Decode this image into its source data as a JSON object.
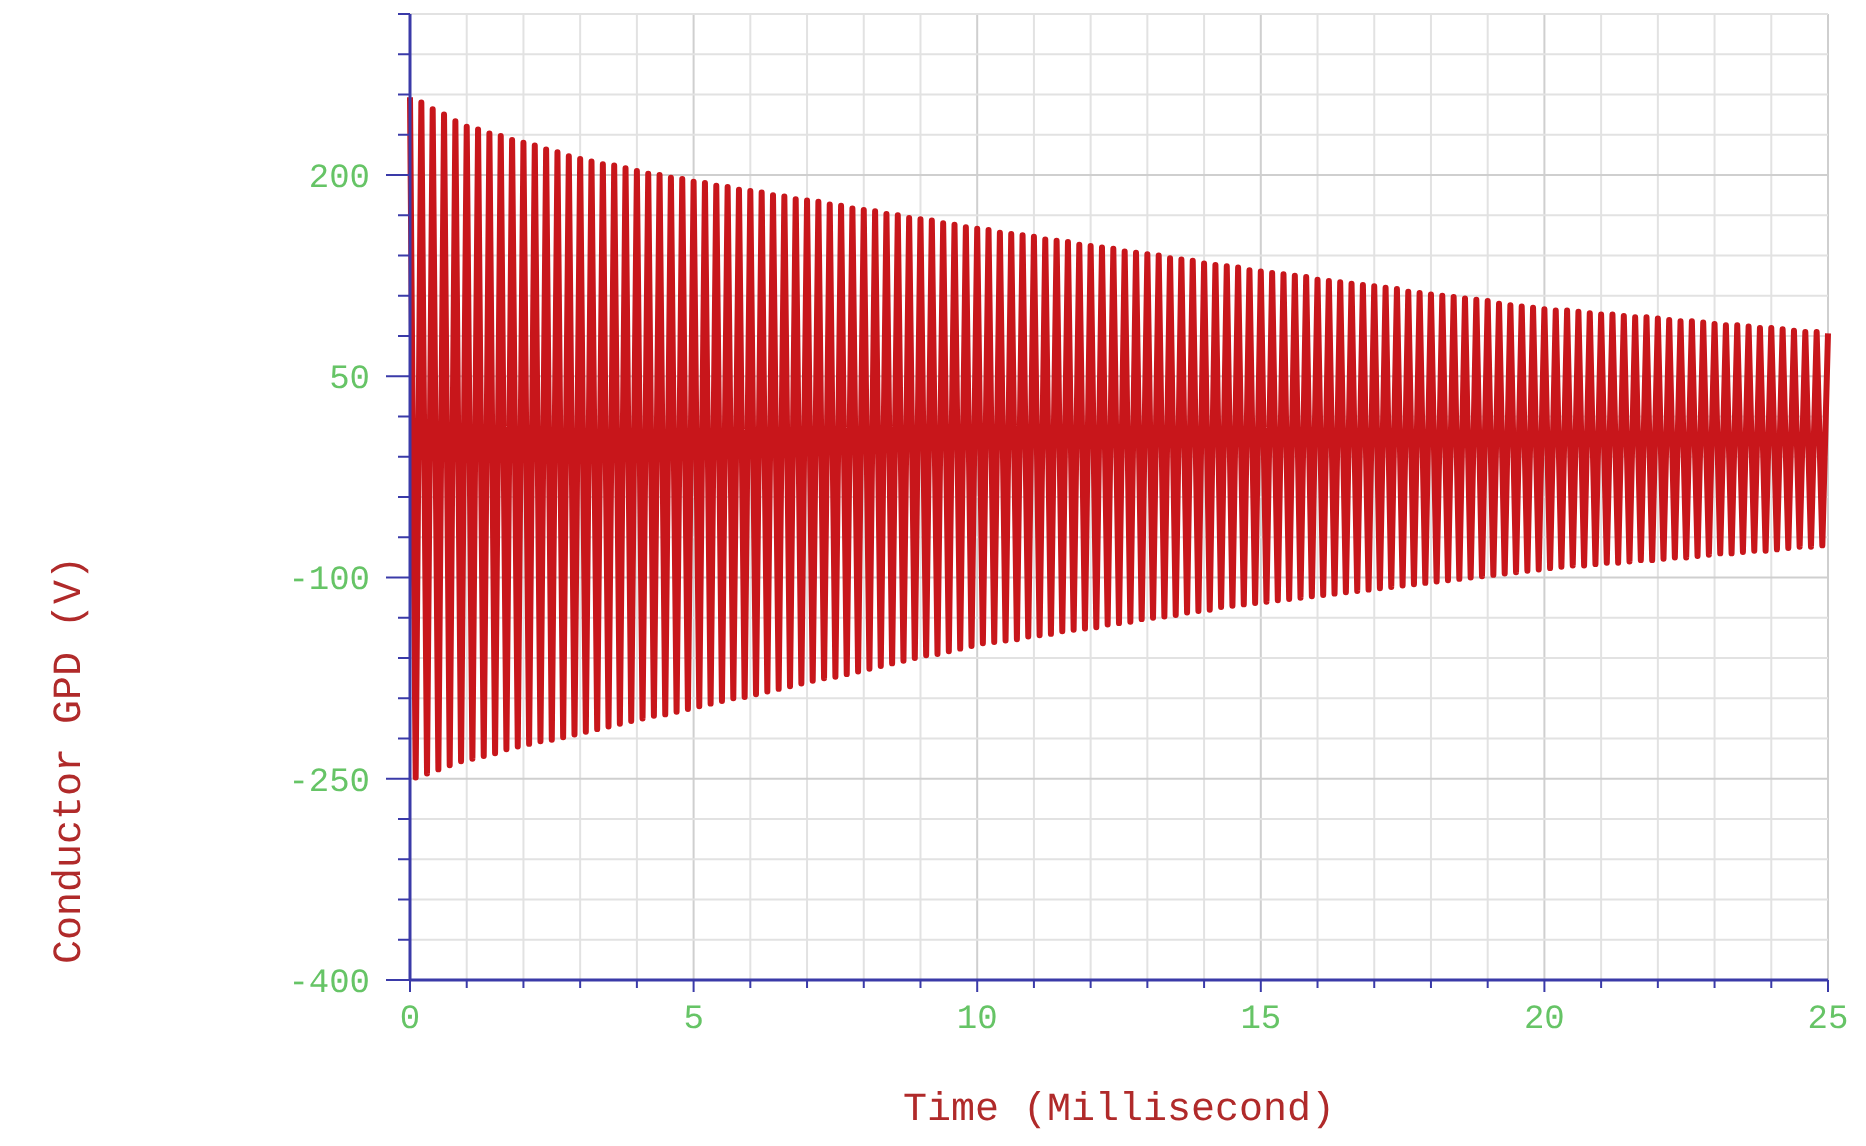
{
  "chart_data": {
    "type": "line",
    "xlabel": "Time (Millisecond)",
    "ylabel": "Conductor GPD (V)",
    "xlim": [
      0,
      25
    ],
    "ylim": [
      -400,
      320
    ],
    "xticks": [
      0,
      {
        "value": 1,
        "label": null
      },
      {
        "value": 2,
        "label": null
      },
      {
        "value": 3,
        "label": null
      },
      {
        "value": 4,
        "label": null
      },
      5,
      {
        "value": 6,
        "label": null
      },
      {
        "value": 7,
        "label": null
      },
      {
        "value": 8,
        "label": null
      },
      {
        "value": 9,
        "label": null
      },
      10,
      {
        "value": 11,
        "label": null
      },
      {
        "value": 12,
        "label": null
      },
      {
        "value": 13,
        "label": null
      },
      {
        "value": 14,
        "label": null
      },
      15,
      {
        "value": 16,
        "label": null
      },
      {
        "value": 17,
        "label": null
      },
      {
        "value": 18,
        "label": null
      },
      {
        "value": 19,
        "label": null
      },
      20,
      {
        "value": 21,
        "label": null
      },
      {
        "value": 22,
        "label": null
      },
      {
        "value": 23,
        "label": null
      },
      {
        "value": 24,
        "label": null
      },
      25
    ],
    "yticks": [
      -400,
      {
        "value": -370,
        "label": null
      },
      {
        "value": -340,
        "label": null
      },
      {
        "value": -310,
        "label": null
      },
      {
        "value": -280,
        "label": null
      },
      -250,
      {
        "value": -220,
        "label": null
      },
      {
        "value": -190,
        "label": null
      },
      {
        "value": -160,
        "label": null
      },
      {
        "value": -130,
        "label": null
      },
      -100,
      {
        "value": -70,
        "label": null
      },
      {
        "value": -40,
        "label": null
      },
      {
        "value": -10,
        "label": null
      },
      {
        "value": 20,
        "label": null
      },
      50,
      {
        "value": 80,
        "label": null
      },
      {
        "value": 110,
        "label": null
      },
      {
        "value": 140,
        "label": null
      },
      {
        "value": 170,
        "label": null
      },
      200,
      {
        "value": 230,
        "label": null
      },
      {
        "value": 260,
        "label": null
      },
      {
        "value": 290,
        "label": null
      },
      {
        "value": 320,
        "label": null
      }
    ],
    "grid": true,
    "marker": "none",
    "line_style": "solid",
    "x": [
      0,
      0.1,
      0.2,
      0.3,
      0.4,
      0.5,
      0.6,
      0.7,
      0.8,
      0.9,
      1,
      1.1,
      1.2,
      1.3,
      1.4,
      1.5,
      1.6,
      1.7,
      1.8,
      1.9,
      2,
      2.1,
      2.2,
      2.3,
      2.4,
      2.5,
      2.6,
      2.7,
      2.8,
      2.9,
      3,
      3.1,
      3.2,
      3.3,
      3.4,
      3.5,
      3.6,
      3.7,
      3.8,
      3.9,
      4,
      4.1,
      4.2,
      4.3,
      4.4,
      4.5,
      4.6,
      4.7,
      4.8,
      4.9,
      5,
      5.1,
      5.2,
      5.3,
      5.4,
      5.5,
      5.6,
      5.7,
      5.8,
      5.9,
      6,
      6.1,
      6.2,
      6.3,
      6.4,
      6.5,
      6.6,
      6.7,
      6.8,
      6.9,
      7,
      7.1,
      7.2,
      7.3,
      7.4,
      7.5,
      7.6,
      7.7,
      7.8,
      7.9,
      8,
      8.1,
      8.2,
      8.3,
      8.4,
      8.5,
      8.6,
      8.7,
      8.8,
      8.9,
      9,
      9.1,
      9.2,
      9.3,
      9.4,
      9.5,
      9.6,
      9.7,
      9.8,
      9.9,
      10,
      10.1,
      10.2,
      10.3,
      10.4,
      10.5,
      10.6,
      10.7,
      10.8,
      10.9,
      11,
      11.1,
      11.2,
      11.3,
      11.4,
      11.5,
      11.6,
      11.7,
      11.8,
      11.9,
      12,
      12.1,
      12.2,
      12.3,
      12.4,
      12.5,
      12.6,
      12.7,
      12.8,
      12.9,
      13,
      13.1,
      13.2,
      13.3,
      13.4,
      13.5,
      13.6,
      13.7,
      13.8,
      13.9,
      14,
      14.1,
      14.2,
      14.3,
      14.4,
      14.5,
      14.6,
      14.7,
      14.8,
      14.9,
      15,
      15.1,
      15.2,
      15.3,
      15.4,
      15.5,
      15.6,
      15.7,
      15.8,
      15.9,
      16,
      16.1,
      16.2,
      16.3,
      16.4,
      16.5,
      16.6,
      16.7,
      16.8,
      16.9,
      17,
      17.1,
      17.2,
      17.3,
      17.4,
      17.5,
      17.6,
      17.7,
      17.8,
      17.9,
      18,
      18.1,
      18.2,
      18.3,
      18.4,
      18.5,
      18.6,
      18.7,
      18.8,
      18.9,
      19,
      19.1,
      19.2,
      19.3,
      19.4,
      19.5,
      19.6,
      19.7,
      19.8,
      19.9,
      20,
      20.1,
      20.2,
      20.3,
      20.4,
      20.5,
      20.6,
      20.7,
      20.8,
      20.9,
      21,
      21.1,
      21.2,
      21.3,
      21.4,
      21.5,
      21.6,
      21.7,
      21.8,
      21.9,
      22,
      22.1,
      22.2,
      22.3,
      22.4,
      22.5,
      22.6,
      22.7,
      22.8,
      22.9,
      23,
      23.1,
      23.2,
      23.3,
      23.4,
      23.5,
      23.6,
      23.7,
      23.8,
      23.9,
      24,
      24.1,
      24.2,
      24.3,
      24.4,
      24.5,
      24.6,
      24.7,
      24.8,
      24.9,
      25
    ],
    "series": [
      {
        "color": "#c8161b",
        "values": [
          258,
          -249,
          254,
          -246,
          249,
          -243,
          245,
          -240,
          240,
          -237,
          236,
          -235,
          234,
          -233,
          231,
          -231,
          229,
          -228,
          226,
          -226,
          224,
          -224,
          222,
          -222,
          219,
          -221,
          217,
          -219,
          214,
          -217,
          212,
          -215,
          210,
          -213,
          208,
          -211,
          207,
          -209,
          205,
          -207,
          203,
          -205,
          201,
          -203,
          200,
          -202,
          198,
          -200,
          197,
          -198,
          195,
          -196,
          194,
          -194,
          192,
          -192,
          191,
          -190,
          189,
          -189,
          188,
          -187,
          187,
          -185,
          185,
          -183,
          184,
          -181,
          182,
          -179,
          181,
          -177,
          180,
          -175,
          178,
          -174,
          177,
          -172,
          175,
          -170,
          174,
          -168,
          173,
          -166,
          171,
          -164,
          170,
          -162,
          168,
          -160,
          167,
          -158,
          166,
          -157,
          164,
          -155,
          163,
          -153,
          161,
          -151,
          160,
          -149,
          159,
          -148,
          157,
          -147,
          156,
          -146,
          155,
          -144,
          154,
          -143,
          152,
          -142,
          151,
          -140,
          150,
          -139,
          148,
          -138,
          147,
          -137,
          146,
          -135,
          145,
          -134,
          143,
          -133,
          142,
          -131,
          141,
          -130,
          140,
          -129,
          138,
          -128,
          137,
          -126,
          136,
          -125,
          134,
          -124,
          133,
          -122,
          132,
          -121,
          131,
          -120,
          129,
          -119,
          128,
          -118,
          127,
          -117,
          126,
          -116,
          125,
          -115,
          124,
          -114,
          122,
          -113,
          121,
          -112,
          120,
          -111,
          119,
          -110,
          118,
          -109,
          117,
          -108,
          116,
          -107,
          115,
          -106,
          113,
          -105,
          112,
          -104,
          111,
          -103,
          110,
          -102,
          109,
          -101,
          108,
          -100,
          107,
          -99,
          106,
          -98,
          104,
          -97,
          103,
          -96,
          102,
          -95,
          101,
          -94,
          100,
          -93,
          99,
          -92,
          99,
          -91,
          98,
          -91,
          97,
          -90,
          96,
          -89,
          96,
          -89,
          95,
          -88,
          94,
          -87,
          94,
          -87,
          93,
          -86,
          92,
          -85,
          91,
          -85,
          91,
          -84,
          90,
          -83,
          89,
          -82,
          88,
          -82,
          88,
          -81,
          87,
          -80,
          86,
          -80,
          86,
          -79,
          85,
          -78,
          84,
          -77,
          83,
          -77,
          83,
          -76,
          82
        ]
      }
    ]
  }
}
